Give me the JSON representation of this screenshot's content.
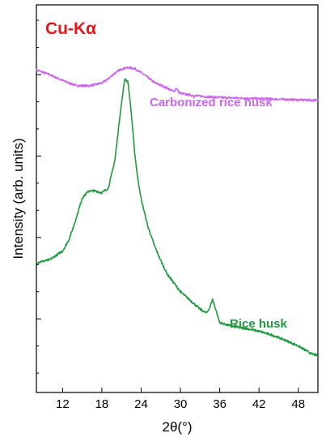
{
  "chart_data": {
    "type": "line",
    "annotation": "Cu-Kα",
    "xlabel": "2θ(°)",
    "ylabel": "Intensity (arb. units)",
    "xlim": [
      8,
      51
    ],
    "ylim": [
      0,
      100
    ],
    "x_ticks": [
      "12",
      "18",
      "24",
      "30",
      "36",
      "42",
      "48"
    ],
    "x_tick_values": [
      12,
      18,
      24,
      30,
      36,
      42,
      48
    ],
    "y_minor_ticks": [
      5,
      12,
      19,
      26,
      33,
      40,
      47,
      54,
      61,
      68,
      75,
      82,
      89,
      96
    ],
    "y_major_ticks": [
      19,
      40,
      61,
      82
    ],
    "grid": false,
    "colors": {
      "carbonized": "#cc66ee",
      "rice": "#1f9a3f",
      "annotation": "#e8161b"
    },
    "series": [
      {
        "name": "Carbonized rice husk",
        "color": "#cc66ee",
        "x": [
          8,
          10,
          12,
          14,
          16,
          18,
          19,
          20,
          21,
          22,
          23,
          24,
          25,
          26,
          28,
          29,
          29.4,
          29.8,
          30.5,
          32,
          34,
          36,
          38,
          40,
          42,
          44,
          46,
          48,
          50,
          51
        ],
        "y": [
          83.2,
          82.0,
          80.5,
          79.2,
          79.1,
          79.8,
          81.0,
          82.4,
          83.5,
          83.8,
          83.6,
          82.5,
          81.3,
          80.0,
          78.5,
          77.6,
          78.6,
          77.3,
          77.0,
          76.6,
          76.3,
          76.1,
          76.0,
          75.9,
          75.8,
          75.7,
          75.6,
          75.5,
          75.4,
          75.4
        ]
      },
      {
        "name": "Rice husk",
        "color": "#1f9a3f",
        "x": [
          8,
          10,
          12,
          13,
          14,
          15,
          16,
          17,
          18,
          19,
          20,
          20.8,
          21.5,
          22,
          22.5,
          23,
          23.5,
          24,
          25,
          26,
          27,
          28,
          30,
          32,
          33,
          34,
          34.5,
          34.9,
          35.3,
          36,
          38,
          40,
          42,
          44,
          46,
          48,
          50,
          51
        ],
        "y": [
          33.5,
          34.2,
          36.5,
          39.5,
          44.5,
          50.2,
          52.0,
          52.0,
          51.5,
          52.8,
          60.0,
          72.0,
          81.0,
          80.0,
          72.0,
          62.0,
          55.0,
          50.0,
          43.0,
          38.0,
          34.0,
          30.5,
          26.0,
          23.0,
          21.5,
          20.5,
          22.0,
          24.0,
          22.0,
          18.0,
          17.0,
          16.5,
          15.8,
          14.8,
          13.5,
          12.0,
          10.0,
          9.5
        ]
      }
    ]
  }
}
